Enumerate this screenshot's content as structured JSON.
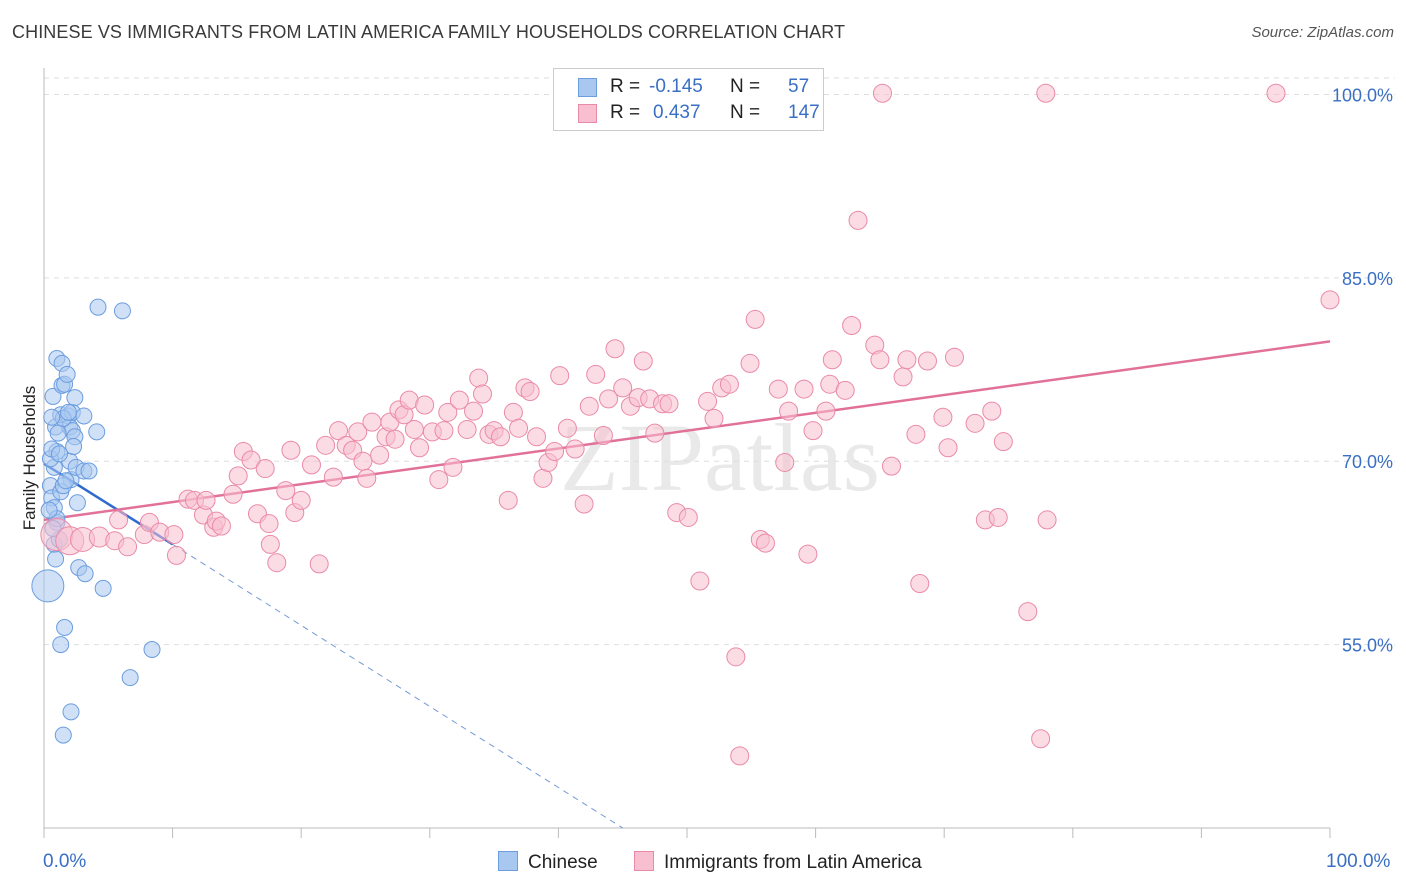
{
  "title": "CHINESE VS IMMIGRANTS FROM LATIN AMERICA FAMILY HOUSEHOLDS CORRELATION CHART",
  "source": "Source: ZipAtlas.com",
  "watermark": "ZIPatlas",
  "legend": {
    "rows": [
      {
        "r_label": "R =",
        "r_value": "-0.145",
        "n_label": "N =",
        "n_value": "57",
        "color": "#a9c8f0",
        "border": "#6b9ddf"
      },
      {
        "r_label": "R =",
        "r_value": "0.437",
        "n_label": "N =",
        "n_value": "147",
        "color": "#f8bfd0",
        "border": "#ea8aa8"
      }
    ]
  },
  "bottom_legend": {
    "series1": "Chinese",
    "series2": "Immigrants from Latin America"
  },
  "x_labels": {
    "left": "0.0%",
    "right": "100.0%"
  },
  "chart_data": {
    "type": "scatter",
    "title": "CHINESE VS IMMIGRANTS FROM LATIN AMERICA FAMILY HOUSEHOLDS CORRELATION CHART",
    "xlabel": "",
    "ylabel": "Family Households",
    "xlim": [
      0,
      100
    ],
    "ylim": [
      40,
      102
    ],
    "y_ticks": [
      55,
      70,
      85,
      100
    ],
    "y_tick_labels": [
      "55.0%",
      "70.0%",
      "85.0%",
      "100.0%"
    ],
    "grid": true,
    "legend_position": "top-center",
    "series": [
      {
        "name": "Chinese",
        "color": "#a9c8f0",
        "stroke": "#6b9ddf",
        "trend": {
          "x0": 0,
          "y0": 69.8,
          "x1": 10,
          "y1": 63.2,
          "dashed_to_x": 45,
          "dashed_to_y": 40
        },
        "points": [
          [
            0.3,
            59.8,
            16
          ],
          [
            0.5,
            68,
            8
          ],
          [
            0.6,
            67,
            8
          ],
          [
            0.8,
            66.2,
            8
          ],
          [
            1.0,
            65,
            8
          ],
          [
            0.8,
            69.5,
            8
          ],
          [
            1.0,
            70.8,
            8
          ],
          [
            0.9,
            72.8,
            8
          ],
          [
            0.7,
            75.3,
            8
          ],
          [
            1.0,
            78.4,
            8
          ],
          [
            1.3,
            73.8,
            8
          ],
          [
            1.4,
            76.2,
            8
          ],
          [
            1.4,
            78,
            8
          ],
          [
            1.6,
            76.3,
            8
          ],
          [
            1.8,
            77.1,
            8
          ],
          [
            1.9,
            73.7,
            8
          ],
          [
            2.0,
            72.8,
            8
          ],
          [
            2.0,
            70,
            8
          ],
          [
            2.1,
            68.5,
            8
          ],
          [
            2.2,
            74,
            8
          ],
          [
            2.2,
            72.5,
            8
          ],
          [
            2.4,
            72,
            8
          ],
          [
            2.4,
            75.2,
            8
          ],
          [
            2.5,
            69.5,
            8
          ],
          [
            2.6,
            66.6,
            8
          ],
          [
            3.1,
            73.7,
            8
          ],
          [
            3.1,
            69.2,
            8
          ],
          [
            3.5,
            69.2,
            8
          ],
          [
            4.1,
            72.4,
            8
          ],
          [
            4.2,
            82.6,
            8
          ],
          [
            6.1,
            82.3,
            8
          ],
          [
            1.0,
            65.3,
            8
          ],
          [
            1.3,
            67.5,
            8
          ],
          [
            1.5,
            68,
            8
          ],
          [
            0.8,
            63.2,
            8
          ],
          [
            1.2,
            63.6,
            8
          ],
          [
            0.9,
            62,
            8
          ],
          [
            2.7,
            61.3,
            8
          ],
          [
            3.2,
            60.8,
            8
          ],
          [
            4.6,
            59.6,
            8
          ],
          [
            1.6,
            56.4,
            8
          ],
          [
            1.3,
            55,
            8
          ],
          [
            8.4,
            54.6,
            8
          ],
          [
            6.7,
            52.3,
            8
          ],
          [
            2.1,
            49.5,
            8
          ],
          [
            1.5,
            47.6,
            8
          ],
          [
            0.5,
            70.2,
            8
          ],
          [
            0.6,
            71,
            8
          ],
          [
            1.1,
            72.3,
            8
          ],
          [
            1.5,
            73.5,
            8
          ],
          [
            1.9,
            74,
            8
          ],
          [
            0.4,
            66,
            8
          ],
          [
            0.7,
            64.5,
            8
          ],
          [
            1.7,
            68.4,
            8
          ],
          [
            2.3,
            71.2,
            8
          ],
          [
            0.6,
            73.6,
            8
          ],
          [
            1.2,
            70.6,
            8
          ]
        ]
      },
      {
        "name": "Immigrants from Latin America",
        "color": "#f8bfd0",
        "stroke": "#ea8aa8",
        "trend": {
          "x0": 0,
          "y0": 65.2,
          "x1": 100,
          "y1": 79.8
        },
        "points": [
          [
            1.0,
            64,
            16
          ],
          [
            2.0,
            63.5,
            14
          ],
          [
            3.0,
            63.6,
            12
          ],
          [
            4.3,
            63.8,
            10
          ],
          [
            5.5,
            63.5,
            9
          ],
          [
            5.8,
            65.2,
            9
          ],
          [
            6.5,
            63,
            9
          ],
          [
            7.8,
            64,
            9
          ],
          [
            8.2,
            65,
            9
          ],
          [
            9.0,
            64.2,
            9
          ],
          [
            10.1,
            64,
            9
          ],
          [
            10.3,
            62.3,
            9
          ],
          [
            11.2,
            66.9,
            9
          ],
          [
            11.7,
            66.8,
            9
          ],
          [
            12.4,
            65.6,
            9
          ],
          [
            12.6,
            66.8,
            9
          ],
          [
            13.2,
            64.6,
            9
          ],
          [
            13.4,
            65.1,
            9
          ],
          [
            13.8,
            64.7,
            9
          ],
          [
            14.7,
            67.3,
            9
          ],
          [
            15.1,
            68.8,
            9
          ],
          [
            15.5,
            70.8,
            9
          ],
          [
            16.1,
            70.1,
            9
          ],
          [
            16.6,
            65.7,
            9
          ],
          [
            17.2,
            69.4,
            9
          ],
          [
            17.5,
            64.9,
            9
          ],
          [
            17.6,
            63.2,
            9
          ],
          [
            18.1,
            61.7,
            9
          ],
          [
            18.8,
            67.6,
            9
          ],
          [
            19.2,
            70.9,
            9
          ],
          [
            19.5,
            65.8,
            9
          ],
          [
            20.0,
            66.8,
            9
          ],
          [
            20.8,
            69.7,
            9
          ],
          [
            21.4,
            61.6,
            9
          ],
          [
            21.9,
            71.3,
            9
          ],
          [
            22.5,
            68.7,
            9
          ],
          [
            22.9,
            72.5,
            9
          ],
          [
            23.5,
            71.3,
            9
          ],
          [
            24.0,
            70.9,
            9
          ],
          [
            24.4,
            72.4,
            9
          ],
          [
            24.8,
            70,
            9
          ],
          [
            25.1,
            68.6,
            9
          ],
          [
            25.5,
            73.2,
            9
          ],
          [
            26.1,
            70.5,
            9
          ],
          [
            26.6,
            72,
            9
          ],
          [
            26.9,
            73.2,
            9
          ],
          [
            27.3,
            71.8,
            9
          ],
          [
            27.6,
            74.2,
            9
          ],
          [
            28.0,
            73.8,
            9
          ],
          [
            28.4,
            75,
            9
          ],
          [
            28.8,
            72.6,
            9
          ],
          [
            29.2,
            71.1,
            9
          ],
          [
            29.6,
            74.6,
            9
          ],
          [
            30.2,
            72.4,
            9
          ],
          [
            30.7,
            68.5,
            9
          ],
          [
            31.1,
            72.5,
            9
          ],
          [
            31.4,
            74,
            9
          ],
          [
            31.8,
            69.5,
            9
          ],
          [
            32.3,
            75,
            9
          ],
          [
            32.9,
            72.6,
            9
          ],
          [
            33.4,
            74.1,
            9
          ],
          [
            33.8,
            76.8,
            9
          ],
          [
            34.1,
            75.5,
            9
          ],
          [
            34.6,
            72.2,
            9
          ],
          [
            35.0,
            72.5,
            9
          ],
          [
            35.5,
            72,
            9
          ],
          [
            36.1,
            66.8,
            9
          ],
          [
            36.5,
            74,
            9
          ],
          [
            36.9,
            72.7,
            9
          ],
          [
            37.4,
            76,
            9
          ],
          [
            37.8,
            75.7,
            9
          ],
          [
            38.3,
            72,
            9
          ],
          [
            38.8,
            68.6,
            9
          ],
          [
            39.2,
            69.9,
            9
          ],
          [
            39.7,
            70.8,
            9
          ],
          [
            40.1,
            77,
            9
          ],
          [
            40.7,
            72.7,
            9
          ],
          [
            41.3,
            71,
            9
          ],
          [
            42.0,
            66.5,
            9
          ],
          [
            42.4,
            74.5,
            9
          ],
          [
            42.9,
            77.1,
            9
          ],
          [
            43.5,
            72.1,
            9
          ],
          [
            43.9,
            75.1,
            9
          ],
          [
            44.4,
            79.2,
            9
          ],
          [
            45.0,
            76,
            9
          ],
          [
            45.6,
            74.5,
            9
          ],
          [
            46.2,
            75.2,
            9
          ],
          [
            46.6,
            78.2,
            9
          ],
          [
            47.1,
            75.1,
            9
          ],
          [
            47.5,
            72.3,
            9
          ],
          [
            48.1,
            74.7,
            9
          ],
          [
            48.6,
            74.7,
            9
          ],
          [
            49.2,
            65.8,
            9
          ],
          [
            50.1,
            65.4,
            9
          ],
          [
            51.0,
            60.2,
            9
          ],
          [
            51.6,
            74.9,
            9
          ],
          [
            52.1,
            73.5,
            9
          ],
          [
            52.7,
            76,
            9
          ],
          [
            53.3,
            76.3,
            9
          ],
          [
            53.8,
            54,
            9
          ],
          [
            54.1,
            45.9,
            9
          ],
          [
            54.9,
            78,
            9
          ],
          [
            55.3,
            81.6,
            9
          ],
          [
            55.7,
            63.6,
            9
          ],
          [
            56.1,
            63.3,
            9
          ],
          [
            57.1,
            75.9,
            9
          ],
          [
            57.6,
            69.9,
            9
          ],
          [
            57.9,
            74.1,
            9
          ],
          [
            59.1,
            75.9,
            9
          ],
          [
            59.4,
            62.4,
            9
          ],
          [
            59.8,
            72.5,
            9
          ],
          [
            60.8,
            74.1,
            9
          ],
          [
            61.1,
            76.3,
            9
          ],
          [
            61.3,
            78.3,
            9
          ],
          [
            62.3,
            75.8,
            9
          ],
          [
            62.8,
            81.1,
            9
          ],
          [
            63.3,
            89.7,
            9
          ],
          [
            64.6,
            79.5,
            9
          ],
          [
            65.0,
            78.3,
            9
          ],
          [
            65.9,
            69.6,
            9
          ],
          [
            66.8,
            76.9,
            9
          ],
          [
            67.1,
            78.3,
            9
          ],
          [
            67.8,
            72.2,
            9
          ],
          [
            68.1,
            60,
            9
          ],
          [
            68.7,
            78.2,
            9
          ],
          [
            69.9,
            73.6,
            9
          ],
          [
            70.3,
            71.1,
            9
          ],
          [
            70.8,
            78.5,
            9
          ],
          [
            72.4,
            73.1,
            9
          ],
          [
            73.2,
            65.2,
            9
          ],
          [
            73.7,
            74.1,
            9
          ],
          [
            74.2,
            65.4,
            9
          ],
          [
            74.6,
            71.6,
            9
          ],
          [
            76.5,
            57.7,
            9
          ],
          [
            77.5,
            47.3,
            9
          ],
          [
            78.0,
            65.2,
            9
          ],
          [
            65.2,
            100.1,
            9
          ],
          [
            77.9,
            100.1,
            9
          ],
          [
            95.8,
            100.1,
            9
          ],
          [
            100.0,
            83.2,
            9
          ]
        ]
      }
    ]
  }
}
